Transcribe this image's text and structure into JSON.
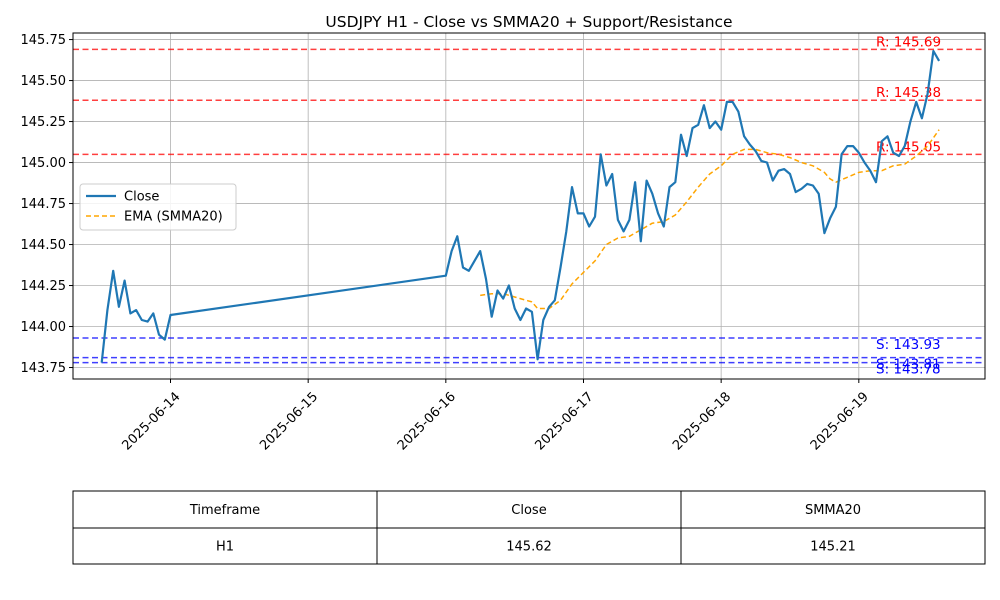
{
  "chart_data": {
    "type": "line",
    "title": "USDJPY H1 - Close vs SMMA20 + Support/Resistance",
    "xlabel": "",
    "ylabel": "",
    "xlim": [
      "2025-06-13 07:00",
      "2025-06-19 22:00"
    ],
    "ylim": [
      143.68,
      145.79
    ],
    "x_tick_labels": [
      "2025-06-14",
      "2025-06-15",
      "2025-06-16",
      "2025-06-17",
      "2025-06-18",
      "2025-06-19"
    ],
    "y_tick_labels": [
      "143.75",
      "144.00",
      "144.25",
      "144.50",
      "144.75",
      "145.00",
      "145.25",
      "145.50",
      "145.75"
    ],
    "grid": true,
    "legend_position": "center-left",
    "series": [
      {
        "name": "Close",
        "color": "#1f77b4",
        "style": "solid",
        "points": [
          [
            "2025-06-13 12:00",
            143.78
          ],
          [
            "2025-06-13 13:00",
            144.1
          ],
          [
            "2025-06-13 14:00",
            144.34
          ],
          [
            "2025-06-13 15:00",
            144.12
          ],
          [
            "2025-06-13 16:00",
            144.28
          ],
          [
            "2025-06-13 17:00",
            144.08
          ],
          [
            "2025-06-13 18:00",
            144.1
          ],
          [
            "2025-06-13 19:00",
            144.04
          ],
          [
            "2025-06-13 20:00",
            144.03
          ],
          [
            "2025-06-13 21:00",
            144.08
          ],
          [
            "2025-06-13 22:00",
            143.95
          ],
          [
            "2025-06-13 23:00",
            143.92
          ],
          [
            "2025-06-14 00:00",
            144.07
          ],
          [
            "2025-06-16 00:00",
            144.31
          ],
          [
            "2025-06-16 01:00",
            144.46
          ],
          [
            "2025-06-16 02:00",
            144.55
          ],
          [
            "2025-06-16 03:00",
            144.36
          ],
          [
            "2025-06-16 04:00",
            144.34
          ],
          [
            "2025-06-16 05:00",
            144.4
          ],
          [
            "2025-06-16 06:00",
            144.46
          ],
          [
            "2025-06-16 07:00",
            144.29
          ],
          [
            "2025-06-16 08:00",
            144.06
          ],
          [
            "2025-06-16 09:00",
            144.22
          ],
          [
            "2025-06-16 10:00",
            144.17
          ],
          [
            "2025-06-16 11:00",
            144.25
          ],
          [
            "2025-06-16 12:00",
            144.11
          ],
          [
            "2025-06-16 13:00",
            144.04
          ],
          [
            "2025-06-16 14:00",
            144.11
          ],
          [
            "2025-06-16 15:00",
            144.09
          ],
          [
            "2025-06-16 16:00",
            143.8
          ],
          [
            "2025-06-16 17:00",
            144.04
          ],
          [
            "2025-06-16 18:00",
            144.12
          ],
          [
            "2025-06-16 19:00",
            144.16
          ],
          [
            "2025-06-16 20:00",
            144.36
          ],
          [
            "2025-06-16 21:00",
            144.58
          ],
          [
            "2025-06-16 22:00",
            144.85
          ],
          [
            "2025-06-16 23:00",
            144.69
          ],
          [
            "2025-06-17 00:00",
            144.69
          ],
          [
            "2025-06-17 01:00",
            144.61
          ],
          [
            "2025-06-17 02:00",
            144.67
          ],
          [
            "2025-06-17 03:00",
            145.05
          ],
          [
            "2025-06-17 04:00",
            144.86
          ],
          [
            "2025-06-17 05:00",
            144.93
          ],
          [
            "2025-06-17 06:00",
            144.65
          ],
          [
            "2025-06-17 07:00",
            144.58
          ],
          [
            "2025-06-17 08:00",
            144.65
          ],
          [
            "2025-06-17 09:00",
            144.88
          ],
          [
            "2025-06-17 10:00",
            144.52
          ],
          [
            "2025-06-17 11:00",
            144.89
          ],
          [
            "2025-06-17 12:00",
            144.81
          ],
          [
            "2025-06-17 13:00",
            144.69
          ],
          [
            "2025-06-17 14:00",
            144.61
          ],
          [
            "2025-06-17 15:00",
            144.85
          ],
          [
            "2025-06-17 16:00",
            144.88
          ],
          [
            "2025-06-17 17:00",
            145.17
          ],
          [
            "2025-06-17 18:00",
            145.04
          ],
          [
            "2025-06-17 19:00",
            145.21
          ],
          [
            "2025-06-17 20:00",
            145.23
          ],
          [
            "2025-06-17 21:00",
            145.35
          ],
          [
            "2025-06-17 22:00",
            145.21
          ],
          [
            "2025-06-17 23:00",
            145.25
          ],
          [
            "2025-06-18 00:00",
            145.2
          ],
          [
            "2025-06-18 01:00",
            145.37
          ],
          [
            "2025-06-18 02:00",
            145.37
          ],
          [
            "2025-06-18 03:00",
            145.31
          ],
          [
            "2025-06-18 04:00",
            145.16
          ],
          [
            "2025-06-18 05:00",
            145.11
          ],
          [
            "2025-06-18 06:00",
            145.07
          ],
          [
            "2025-06-18 07:00",
            145.01
          ],
          [
            "2025-06-18 08:00",
            145.0
          ],
          [
            "2025-06-18 09:00",
            144.89
          ],
          [
            "2025-06-18 10:00",
            144.95
          ],
          [
            "2025-06-18 11:00",
            144.96
          ],
          [
            "2025-06-18 12:00",
            144.93
          ],
          [
            "2025-06-18 13:00",
            144.82
          ],
          [
            "2025-06-18 14:00",
            144.84
          ],
          [
            "2025-06-18 15:00",
            144.87
          ],
          [
            "2025-06-18 16:00",
            144.86
          ],
          [
            "2025-06-18 17:00",
            144.81
          ],
          [
            "2025-06-18 18:00",
            144.57
          ],
          [
            "2025-06-18 19:00",
            144.66
          ],
          [
            "2025-06-18 20:00",
            144.73
          ],
          [
            "2025-06-18 21:00",
            145.05
          ],
          [
            "2025-06-18 22:00",
            145.1
          ],
          [
            "2025-06-18 23:00",
            145.1
          ],
          [
            "2025-06-19 00:00",
            145.06
          ],
          [
            "2025-06-19 01:00",
            145.0
          ],
          [
            "2025-06-19 02:00",
            144.95
          ],
          [
            "2025-06-19 03:00",
            144.88
          ],
          [
            "2025-06-19 04:00",
            145.13
          ],
          [
            "2025-06-19 05:00",
            145.16
          ],
          [
            "2025-06-19 06:00",
            145.06
          ],
          [
            "2025-06-19 07:00",
            145.04
          ],
          [
            "2025-06-19 08:00",
            145.1
          ],
          [
            "2025-06-19 09:00",
            145.25
          ],
          [
            "2025-06-19 10:00",
            145.37
          ],
          [
            "2025-06-19 11:00",
            145.27
          ],
          [
            "2025-06-19 12:00",
            145.42
          ],
          [
            "2025-06-19 13:00",
            145.68
          ],
          [
            "2025-06-19 14:00",
            145.62
          ]
        ]
      },
      {
        "name": "EMA (SMMA20)",
        "color": "#ffa500",
        "style": "dashed",
        "points": [
          [
            "2025-06-16 06:00",
            144.19
          ],
          [
            "2025-06-16 08:00",
            144.2
          ],
          [
            "2025-06-16 10:00",
            144.2
          ],
          [
            "2025-06-16 12:00",
            144.18
          ],
          [
            "2025-06-16 14:00",
            144.16
          ],
          [
            "2025-06-16 15:00",
            144.15
          ],
          [
            "2025-06-16 16:00",
            144.11
          ],
          [
            "2025-06-16 18:00",
            144.11
          ],
          [
            "2025-06-16 20:00",
            144.16
          ],
          [
            "2025-06-16 22:00",
            144.26
          ],
          [
            "2025-06-17 00:00",
            144.33
          ],
          [
            "2025-06-17 02:00",
            144.4
          ],
          [
            "2025-06-17 04:00",
            144.5
          ],
          [
            "2025-06-17 06:00",
            144.54
          ],
          [
            "2025-06-17 08:00",
            144.55
          ],
          [
            "2025-06-17 10:00",
            144.59
          ],
          [
            "2025-06-17 12:00",
            144.63
          ],
          [
            "2025-06-17 14:00",
            144.64
          ],
          [
            "2025-06-17 16:00",
            144.68
          ],
          [
            "2025-06-17 18:00",
            144.76
          ],
          [
            "2025-06-17 20:00",
            144.85
          ],
          [
            "2025-06-17 22:00",
            144.93
          ],
          [
            "2025-06-18 00:00",
            144.98
          ],
          [
            "2025-06-18 02:00",
            145.05
          ],
          [
            "2025-06-18 04:00",
            145.08
          ],
          [
            "2025-06-18 06:00",
            145.08
          ],
          [
            "2025-06-18 08:00",
            145.06
          ],
          [
            "2025-06-18 10:00",
            145.05
          ],
          [
            "2025-06-18 12:00",
            145.03
          ],
          [
            "2025-06-18 14:00",
            145.0
          ],
          [
            "2025-06-18 16:00",
            144.98
          ],
          [
            "2025-06-18 18:00",
            144.94
          ],
          [
            "2025-06-18 19:00",
            144.9
          ],
          [
            "2025-06-18 20:00",
            144.88
          ],
          [
            "2025-06-18 22:00",
            144.91
          ],
          [
            "2025-06-19 00:00",
            144.94
          ],
          [
            "2025-06-19 02:00",
            144.95
          ],
          [
            "2025-06-19 04:00",
            144.95
          ],
          [
            "2025-06-19 06:00",
            144.98
          ],
          [
            "2025-06-19 08:00",
            144.99
          ],
          [
            "2025-06-19 10:00",
            145.04
          ],
          [
            "2025-06-19 12:00",
            145.1
          ],
          [
            "2025-06-19 14:00",
            145.2
          ]
        ]
      }
    ],
    "resistance_levels": [
      {
        "value": 145.69,
        "label": "R: 145.69"
      },
      {
        "value": 145.38,
        "label": "R: 145.38"
      },
      {
        "value": 145.05,
        "label": "R: 145.05"
      }
    ],
    "support_levels": [
      {
        "value": 143.93,
        "label": "S: 143.93"
      },
      {
        "value": 143.81,
        "label": "S: 143.81"
      },
      {
        "value": 143.78,
        "label": "S: 143.78"
      }
    ],
    "resistance_color": "#ff0000",
    "support_color": "#0000ff",
    "table": {
      "headers": [
        "Timeframe",
        "Close",
        "SMMA20"
      ],
      "rows": [
        [
          "H1",
          "145.62",
          "145.21"
        ]
      ]
    }
  }
}
